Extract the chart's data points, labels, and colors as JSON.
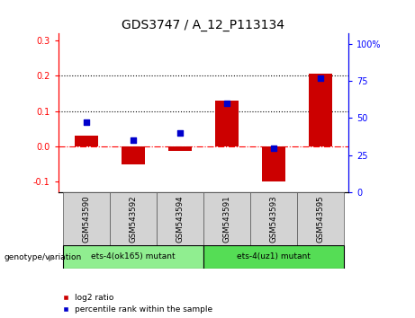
{
  "title": "GDS3747 / A_12_P113134",
  "samples": [
    "GSM543590",
    "GSM543592",
    "GSM543594",
    "GSM543591",
    "GSM543593",
    "GSM543595"
  ],
  "log2_ratio": [
    0.03,
    -0.05,
    -0.013,
    0.13,
    -0.1,
    0.205
  ],
  "percentile_rank": [
    47,
    35,
    40,
    60,
    30,
    77
  ],
  "bar_color": "#cc0000",
  "dot_color": "#0000cc",
  "ylim_left": [
    -0.13,
    0.32
  ],
  "ylim_right": [
    0,
    107
  ],
  "yticks_left": [
    -0.1,
    0.0,
    0.1,
    0.2,
    0.3
  ],
  "yticks_right": [
    0,
    25,
    50,
    75,
    100
  ],
  "dotted_lines": [
    0.1,
    0.2
  ],
  "group1_label": "ets-4(ok165) mutant",
  "group1_color": "#90ee90",
  "group2_label": "ets-4(uz1) mutant",
  "group2_color": "#55dd55",
  "genotype_label": "genotype/variation",
  "legend_label1": "log2 ratio",
  "legend_label2": "percentile rank within the sample",
  "bar_color_legend": "#cc0000",
  "dot_color_legend": "#0000cc",
  "bar_width": 0.5,
  "tick_label_fontsize": 7,
  "title_fontsize": 10
}
